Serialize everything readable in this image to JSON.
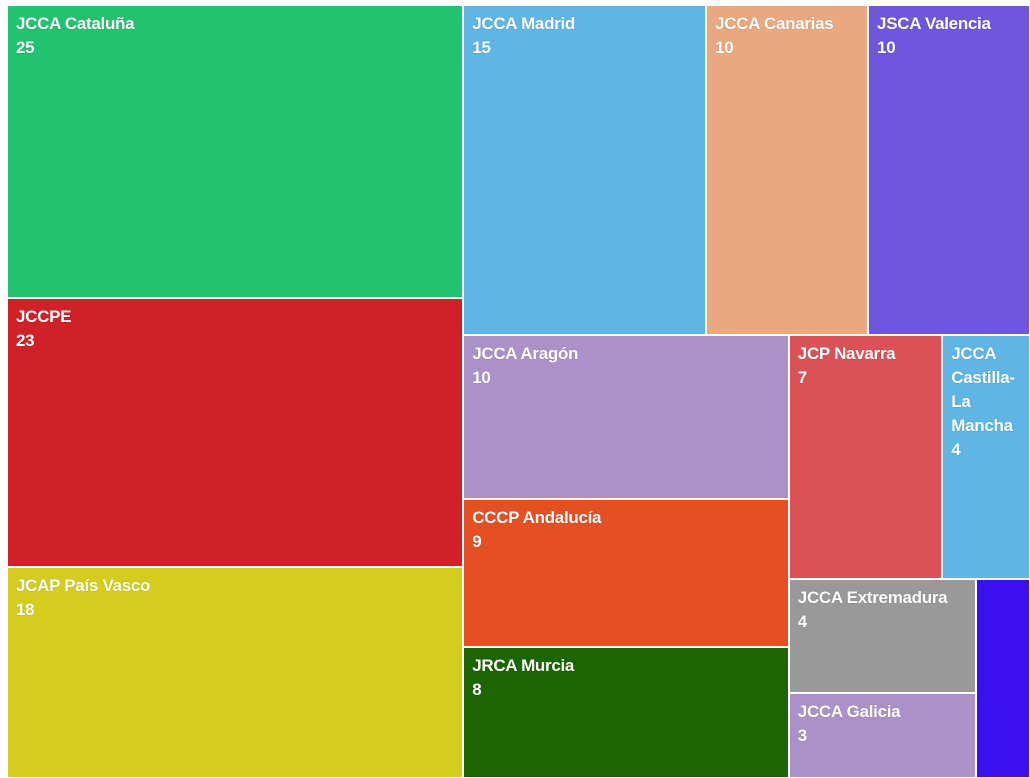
{
  "chart_data": {
    "type": "treemap",
    "categories": [
      "JCCA Cataluña",
      "JCCPE",
      "JCAP País Vasco",
      "JCCA Madrid",
      "JCCA Canarias",
      "JSCA Valencia",
      "JCCA Aragón",
      "JCP Navarra",
      "JCCA Castilla-La Mancha",
      "CCCP Andalucía",
      "JRCA Murcia",
      "JCCA Extremadura",
      "JCCA Galicia",
      null
    ],
    "values": [
      25,
      23,
      18,
      15,
      10,
      10,
      10,
      7,
      4,
      9,
      8,
      4,
      3,
      2
    ],
    "colors": [
      "#22c36f",
      "#cf2127",
      "#d4cd1f",
      "#5fb5e4",
      "#e9a87e",
      "#6e56dd",
      "#ab91c7",
      "#da5256",
      "#5fb5e4",
      "#e44f24",
      "#1d6503",
      "#999999",
      "#ab91c7",
      "#3a0ff0"
    ]
  }
}
